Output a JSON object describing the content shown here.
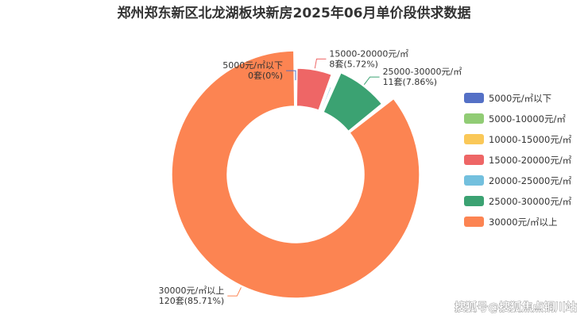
{
  "chart_data": {
    "type": "pie",
    "variant": "donut",
    "title": "郑州郑东新区北龙湖板块新房2025年06月单价段供求数据",
    "slices": [
      {
        "label": "5000元/㎡以下",
        "value": 0,
        "percent": "0%",
        "count_text": "0套(0%)",
        "color": "#5470c6"
      },
      {
        "label": "5000-10000元/㎡",
        "value": 0,
        "color": "#91cc75"
      },
      {
        "label": "10000-15000元/㎡",
        "value": 0,
        "color": "#fac858"
      },
      {
        "label": "15000-20000元/㎡",
        "value": 8,
        "percent": "5.72%",
        "count_text": "8套(5.72%)",
        "color": "#ee6666"
      },
      {
        "label": "20000-25000元/㎡",
        "value": 1,
        "color": "#73c0de"
      },
      {
        "label": "25000-30000元/㎡",
        "value": 11,
        "percent": "7.86%",
        "count_text": "11套(7.86%)",
        "color": "#3ba272"
      },
      {
        "label": "30000元/㎡以上",
        "value": 120,
        "percent": "85.71%",
        "count_text": "120套(85.71%)",
        "color": "#fc8452"
      }
    ],
    "legend_position": "right"
  },
  "watermark": "搜狐号@搜狐焦点铜川站"
}
